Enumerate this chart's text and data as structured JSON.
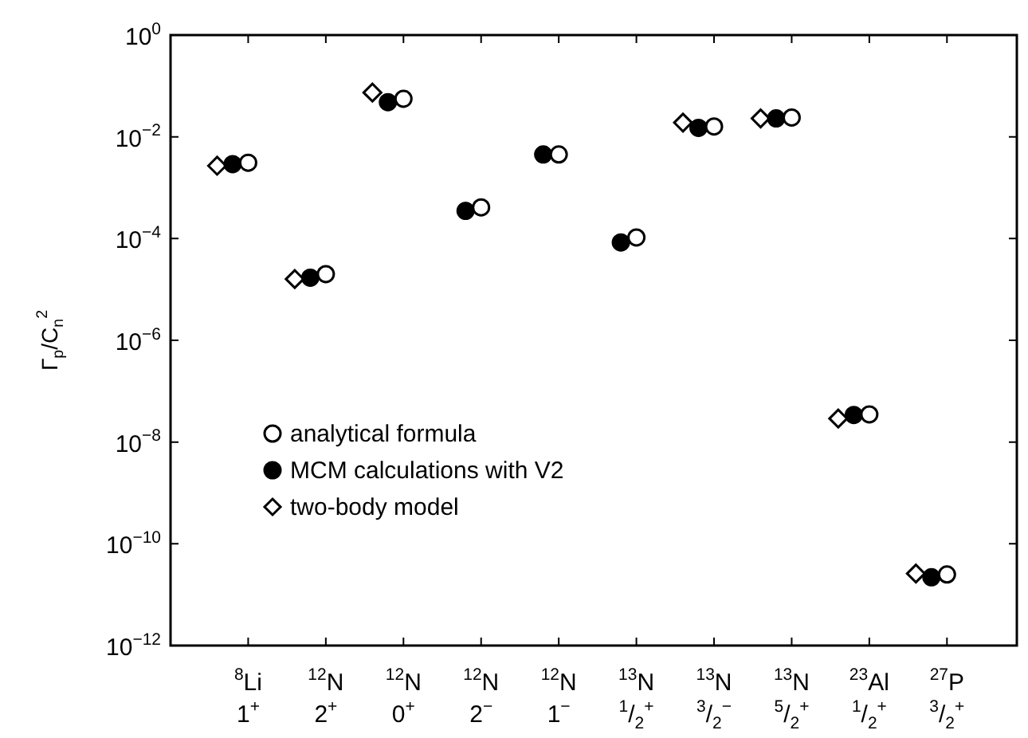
{
  "chart_data": {
    "type": "scatter",
    "ylabel": "Γ$_{p}$/C$_{n}$$^{2}$",
    "categories": [
      "$^{8}$Li\n1$^{+}$",
      "$^{12}$N\n2$^{+}$",
      "$^{12}$N\n0$^{+}$",
      "$^{12}$N\n2$^{−}$",
      "$^{12}$N\n1$^{−}$",
      "$^{13}$N\n$^{1}$/$_{2}$$^{+}$",
      "$^{13}$N\n$^{3}$/$_{2}$$^{−}$",
      "$^{13}$N\n$^{5}$/$_{2}$$^{+}$",
      "$^{23}$Al\n$^{1}$/$_{2}$$^{+}$",
      "$^{27}$P\n$^{3}$/$_{2}$$^{+}$"
    ],
    "series": [
      {
        "name": "analytical formula",
        "color": "#ffffff",
        "marker": "circle",
        "values": [
          0.0031,
          2e-05,
          0.056,
          0.00041,
          0.0045,
          0.000105,
          0.016,
          0.024,
          3.5e-08,
          2.5e-11
        ]
      },
      {
        "name": "MCM calculations with V2",
        "color": "#000000",
        "marker": "circle",
        "values": [
          0.0029,
          1.7e-05,
          0.048,
          0.00035,
          0.0045,
          8.4e-05,
          0.015,
          0.023,
          3.4e-08,
          2.2e-11
        ]
      },
      {
        "name": "two-body model",
        "color": "#ffffff",
        "marker": "diamond",
        "values": [
          0.0027,
          1.6e-05,
          0.074,
          null,
          null,
          null,
          0.019,
          0.023,
          2.9e-08,
          2.6e-11
        ]
      }
    ],
    "log": "y",
    "ylim": [
      1e-12,
      1
    ],
    "yticks": [
      {
        "value": 1e-12,
        "label": "10$^{−12}$"
      },
      {
        "value": 1e-10,
        "label": "10$^{−10}$"
      },
      {
        "value": 1e-08,
        "label": "10$^{−8}$"
      },
      {
        "value": 1e-06,
        "label": "10$^{−6}$"
      },
      {
        "value": 0.0001,
        "label": "10$^{−4}$"
      },
      {
        "value": 0.01,
        "label": "10$^{−2}$"
      },
      {
        "value": 1,
        "label": "10$^{0}$"
      }
    ],
    "legend": "left"
  }
}
